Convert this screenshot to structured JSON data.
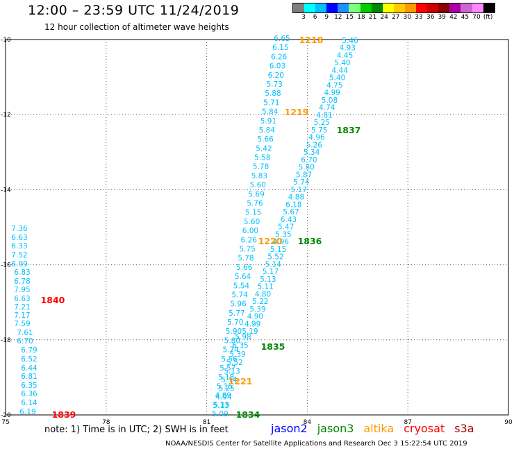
{
  "title": "12:00 – 23:59 UTC 11/24/2019",
  "subtitle": "12 hour collection of altimeter wave heights",
  "color_scale": {
    "colors": [
      "#7f7f7f",
      "#00ffff",
      "#00bfff",
      "#0000ff",
      "#1e90ff",
      "#7fff7f",
      "#00cc00",
      "#008800",
      "#ffff00",
      "#ffcc00",
      "#ff9900",
      "#ff0000",
      "#cc0000",
      "#880000",
      "#aa00aa",
      "#cc66cc",
      "#ff88ff",
      "#000000"
    ],
    "labels": [
      "3",
      "6",
      "9",
      "12",
      "15",
      "18",
      "21",
      "24",
      "27",
      "30",
      "33",
      "36",
      "39",
      "42",
      "45",
      "70",
      "(ft)"
    ]
  },
  "map": {
    "x_ticks": [
      "75",
      "78",
      "81",
      "84",
      "87",
      "90"
    ],
    "y_ticks": [
      "-10",
      "-12",
      "-14",
      "-16",
      "-18",
      "-20"
    ],
    "lon_range": [
      75,
      90
    ],
    "lat_range": [
      -20,
      -10
    ],
    "grid": true
  },
  "tracks": [
    {
      "id": "left",
      "color": "#00bfff",
      "values": [
        "7.36",
        "6.63",
        "6.33",
        "7.52",
        "6.99",
        "6.83",
        "6.78",
        "7.95",
        "6.63",
        "7.21",
        "7.17",
        "7.59",
        "7.61",
        "6.70",
        "6.79",
        "6.52",
        "6.44",
        "6.81",
        "6.35",
        "6.36",
        "6.14",
        "6.19"
      ]
    },
    {
      "id": "middle",
      "color": "#00bfff",
      "values": [
        "6.65",
        "6.15",
        "6.26",
        "6.03",
        "6.20",
        "5.73",
        "5.88",
        "5.71",
        "5.84",
        "5.91",
        "5.84",
        "5.66",
        "5.42",
        "5.58",
        "5.78",
        "5.83",
        "5.60",
        "5.69",
        "5.76",
        "5.15",
        "5.60",
        "6.00",
        "6.26",
        "5.75",
        "5.78",
        "5.66",
        "5.64",
        "5.54",
        "5.74",
        "5.96",
        "5.77",
        "5.70",
        "5.90",
        "5.80",
        "5.74",
        "5.56",
        "5.57",
        "5.18",
        "5.15",
        "4.89",
        "5.15",
        "5.09"
      ]
    },
    {
      "id": "m2",
      "color": "#00bfff",
      "values": [
        "5.98",
        "6.35",
        "5.39",
        "5.52",
        "5.13",
        "5.14",
        "5.25",
        "4.94",
        "5.13"
      ]
    },
    {
      "id": "right",
      "color": "#00bfff",
      "values": [
        "5.46",
        "4.93",
        "4.45",
        "5.40",
        "4.44",
        "5.40",
        "4.75",
        "4.99",
        "5.08",
        "4.74",
        "4.81",
        "5.25",
        "5.75",
        "4.96",
        "5.26",
        "5.34",
        "6.70",
        "5.80",
        "5.87",
        "5.74",
        "5.17",
        "4.88",
        "6.18",
        "5.67",
        "6.43",
        "5.47",
        "5.35",
        "4.96",
        "5.15",
        "5.52",
        "5.14",
        "5.17",
        "5.13",
        "5.11",
        "4.80",
        "5.22",
        "5.39",
        "4.90",
        "4.99",
        "5.19"
      ]
    }
  ],
  "pass_labels": [
    {
      "text": "1218",
      "color": "#ff9900"
    },
    {
      "text": "1219",
      "color": "#ff9900"
    },
    {
      "text": "1220",
      "color": "#ff9900"
    },
    {
      "text": "1221",
      "color": "#ff9900"
    },
    {
      "text": "1837",
      "color": "#008800"
    },
    {
      "text": "1836",
      "color": "#008800"
    },
    {
      "text": "1835",
      "color": "#008800"
    },
    {
      "text": "1834",
      "color": "#008800"
    },
    {
      "text": "1840",
      "color": "#ff0000"
    },
    {
      "text": "1839",
      "color": "#ff0000"
    }
  ],
  "note": "note: 1) Time is in UTC; 2) SWH is in feet",
  "satellites": [
    {
      "name": "jason2",
      "color": "#0000ff"
    },
    {
      "name": "jason3",
      "color": "#008800"
    },
    {
      "name": "altika",
      "color": "#ff9900"
    },
    {
      "name": "cryosat",
      "color": "#ff0000"
    },
    {
      "name": "s3a",
      "color": "#aa0000"
    }
  ],
  "footer": "NOAA/NESDIS Center for Satellite Applications and Research    Dec  3 15:22:54 UTC 2019"
}
